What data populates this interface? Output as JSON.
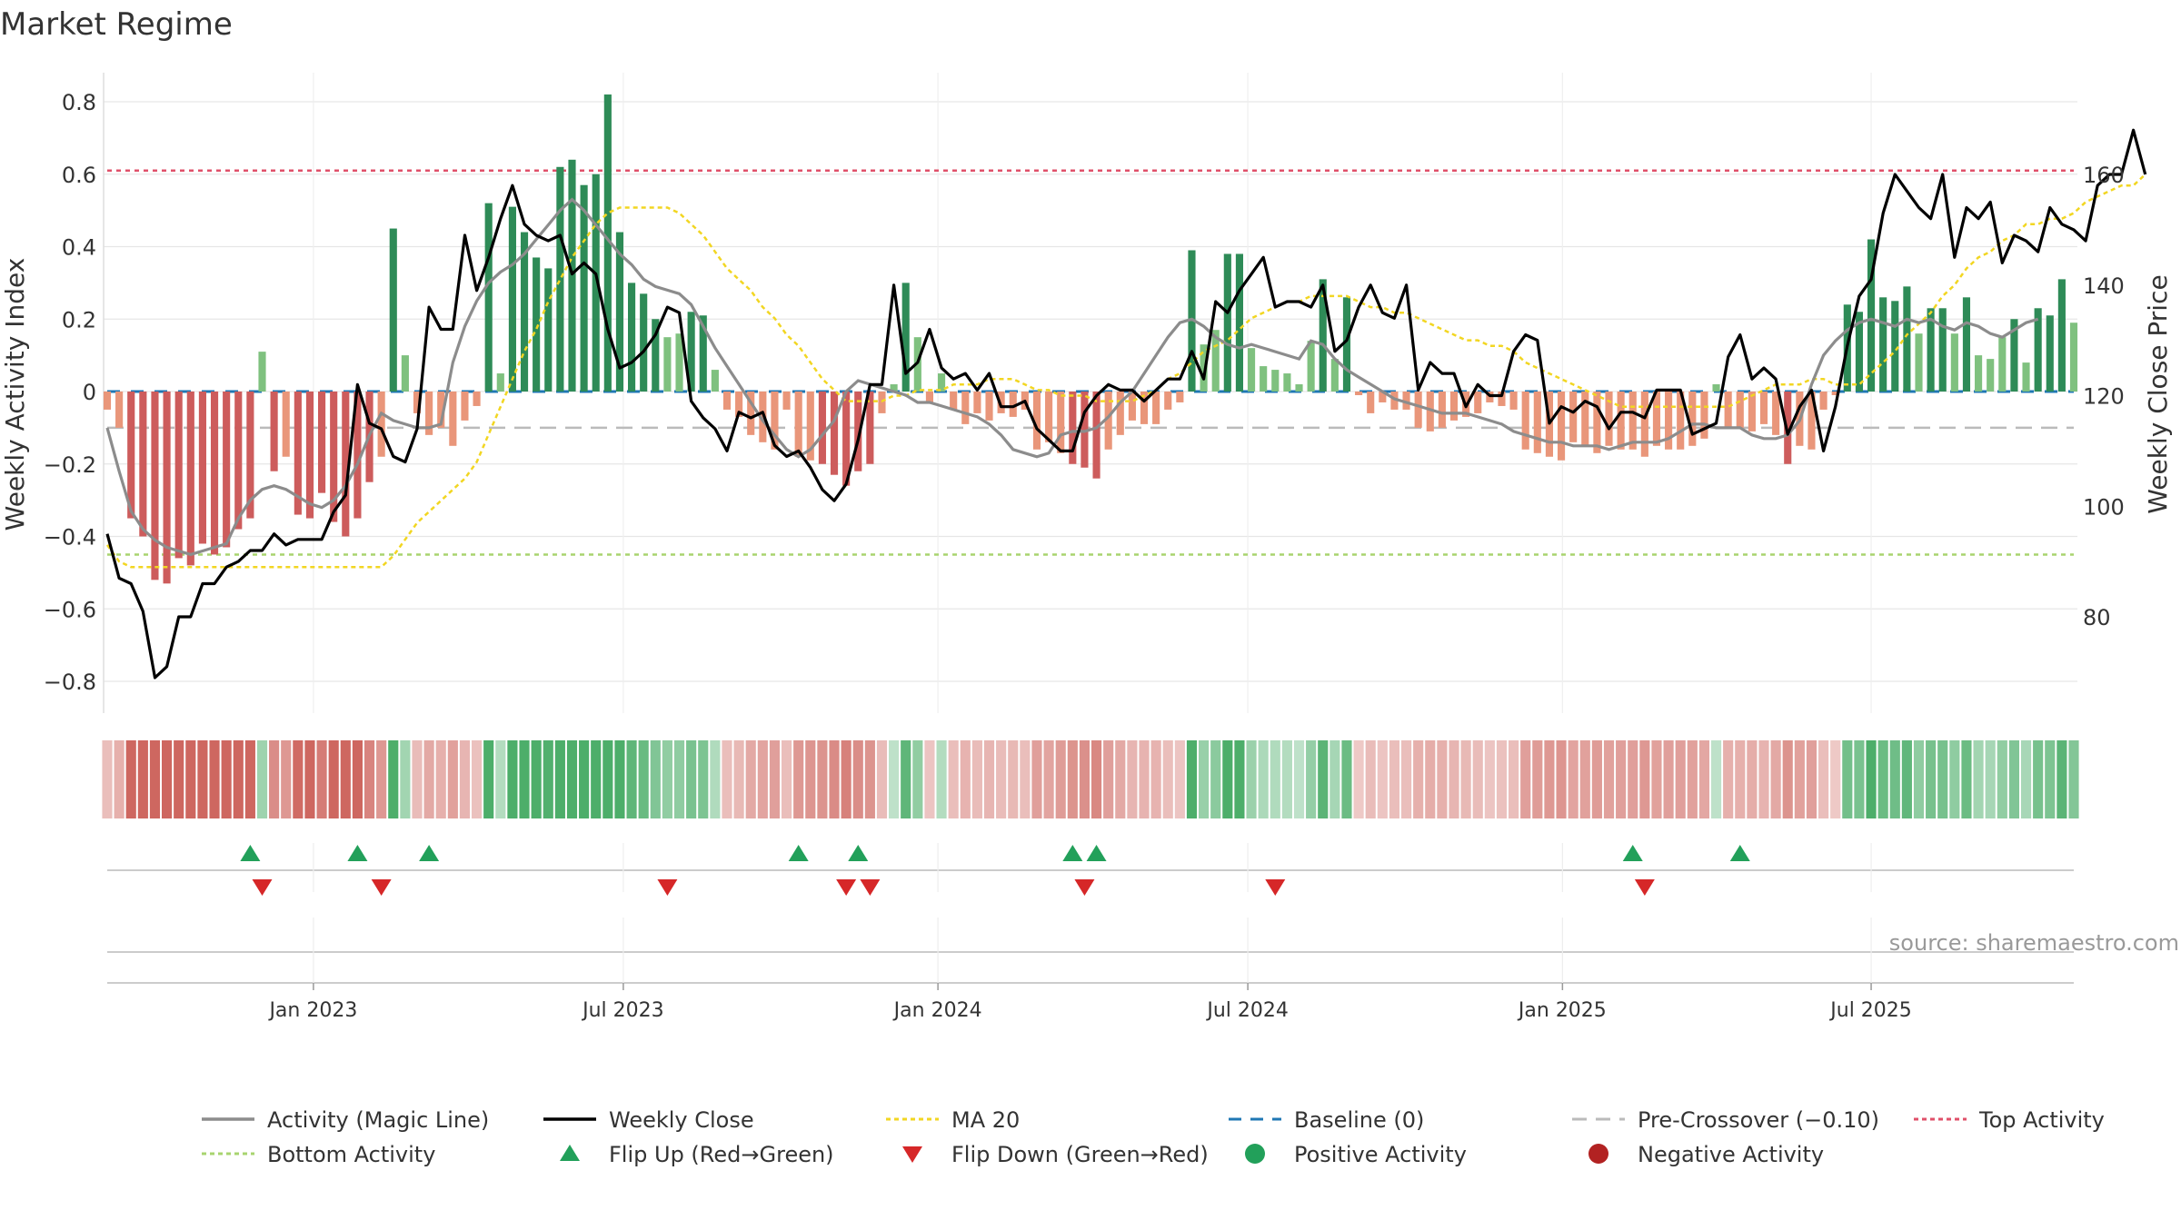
{
  "title": "Market Regime",
  "source_note": "source: sharemaestro.com",
  "colors": {
    "green_dark": "#2e8b57",
    "green_light": "#7fc17f",
    "red_dark": "#cd5c5c",
    "red_light": "#e9967a",
    "weekly_close": "#000000",
    "magic_line": "#8c8c8c",
    "ma20": "#f2d622",
    "baseline": "#1f77b4",
    "pre_crossover": "#bbbbbb",
    "top_activity": "#e0506a",
    "bottom_activity": "#a8d46f",
    "flip_up": "#22a05a",
    "flip_down": "#d62728",
    "grid": "#e6e6e6",
    "axis_text": "#333333"
  },
  "chart_data": {
    "type": "bar",
    "title": "Market Regime",
    "ylabel": "Weekly Activity Index",
    "y2label": "Weekly Close Price",
    "ylim": [
      -0.88,
      0.82
    ],
    "y2lim": [
      67.5,
      174
    ],
    "yticks": [
      "0.8",
      "0.6",
      "0.4",
      "0.2",
      "0",
      "−0.2",
      "−0.4",
      "−0.6",
      "−0.8"
    ],
    "y2ticks": [
      "160",
      "140",
      "120",
      "100",
      "80"
    ],
    "xticks": [
      {
        "label": "Jan 2023",
        "week": 17.3
      },
      {
        "label": "Jul 2023",
        "week": 43.3
      },
      {
        "label": "Jan 2024",
        "week": 69.7
      },
      {
        "label": "Jul 2024",
        "week": 95.7
      },
      {
        "label": "Jan 2025",
        "week": 122.1
      },
      {
        "label": "Jul 2025",
        "week": 148.0
      }
    ],
    "grid": true,
    "top_activity": 0.61,
    "bottom_activity": -0.45,
    "pre_crossover": -0.1,
    "baseline": 0,
    "activity": [
      -0.05,
      -0.1,
      -0.35,
      -0.4,
      -0.52,
      -0.53,
      -0.46,
      -0.48,
      -0.42,
      -0.45,
      -0.43,
      -0.38,
      -0.35,
      0.11,
      -0.22,
      -0.18,
      -0.34,
      -0.35,
      -0.28,
      -0.36,
      -0.4,
      -0.35,
      -0.25,
      -0.18,
      0.45,
      0.1,
      -0.06,
      -0.12,
      -0.1,
      -0.15,
      -0.08,
      -0.04,
      0.52,
      0.05,
      0.51,
      0.44,
      0.37,
      0.34,
      0.62,
      0.64,
      0.57,
      0.6,
      0.82,
      0.44,
      0.3,
      0.27,
      0.2,
      0.15,
      0.16,
      0.22,
      0.21,
      0.06,
      -0.05,
      -0.07,
      -0.12,
      -0.14,
      -0.16,
      -0.05,
      -0.18,
      -0.19,
      -0.2,
      -0.23,
      -0.26,
      -0.22,
      -0.2,
      -0.06,
      0.02,
      0.3,
      0.15,
      -0.03,
      0.05,
      -0.05,
      -0.09,
      -0.06,
      -0.08,
      -0.06,
      -0.07,
      -0.05,
      -0.16,
      -0.14,
      -0.17,
      -0.2,
      -0.21,
      -0.24,
      -0.16,
      -0.12,
      -0.08,
      -0.09,
      -0.09,
      -0.05,
      -0.03,
      0.39,
      0.13,
      0.17,
      0.38,
      0.38,
      0.12,
      0.07,
      0.06,
      0.05,
      0.02,
      0.14,
      0.31,
      0.09,
      0.26,
      -0.01,
      -0.06,
      -0.03,
      -0.05,
      -0.05,
      -0.1,
      -0.11,
      -0.1,
      -0.08,
      -0.07,
      -0.06,
      -0.03,
      -0.04,
      -0.05,
      -0.16,
      -0.17,
      -0.18,
      -0.19,
      -0.14,
      -0.15,
      -0.17,
      -0.15,
      -0.16,
      -0.16,
      -0.18,
      -0.15,
      -0.16,
      -0.16,
      -0.15,
      -0.13,
      0.02,
      -0.1,
      -0.1,
      -0.11,
      -0.09,
      -0.12,
      -0.2,
      -0.15,
      -0.16,
      -0.05,
      -0.01,
      0.24,
      0.22,
      0.42,
      0.26,
      0.25,
      0.29,
      0.16,
      0.23,
      0.23,
      0.16,
      0.26,
      0.1,
      0.09,
      0.15,
      0.2,
      0.08,
      0.23,
      0.21,
      0.31,
      0.19
    ],
    "magic_line": [
      -0.1,
      -0.22,
      -0.33,
      -0.38,
      -0.41,
      -0.43,
      -0.44,
      -0.45,
      -0.44,
      -0.43,
      -0.42,
      -0.35,
      -0.3,
      -0.27,
      -0.26,
      -0.27,
      -0.29,
      -0.31,
      -0.32,
      -0.3,
      -0.26,
      -0.2,
      -0.12,
      -0.06,
      -0.08,
      -0.09,
      -0.1,
      -0.1,
      -0.09,
      0.08,
      0.18,
      0.25,
      0.3,
      0.33,
      0.35,
      0.38,
      0.42,
      0.46,
      0.5,
      0.53,
      0.5,
      0.46,
      0.42,
      0.38,
      0.35,
      0.31,
      0.29,
      0.28,
      0.27,
      0.24,
      0.18,
      0.12,
      0.07,
      0.02,
      -0.03,
      -0.08,
      -0.12,
      -0.16,
      -0.18,
      -0.16,
      -0.12,
      -0.08,
      0.0,
      0.03,
      0.02,
      0.01,
      0.0,
      -0.01,
      -0.03,
      -0.03,
      -0.04,
      -0.05,
      -0.06,
      -0.07,
      -0.09,
      -0.12,
      -0.16,
      -0.17,
      -0.18,
      -0.17,
      -0.12,
      -0.11,
      -0.11,
      -0.1,
      -0.07,
      -0.03,
      0.0,
      0.05,
      0.1,
      0.15,
      0.19,
      0.2,
      0.18,
      0.15,
      0.13,
      0.12,
      0.13,
      0.12,
      0.11,
      0.1,
      0.09,
      0.14,
      0.13,
      0.09,
      0.06,
      0.04,
      0.02,
      0.0,
      -0.02,
      -0.03,
      -0.04,
      -0.05,
      -0.06,
      -0.06,
      -0.06,
      -0.07,
      -0.08,
      -0.09,
      -0.11,
      -0.12,
      -0.13,
      -0.14,
      -0.14,
      -0.15,
      -0.15,
      -0.15,
      -0.16,
      -0.15,
      -0.14,
      -0.14,
      -0.14,
      -0.13,
      -0.11,
      -0.09,
      -0.09,
      -0.1,
      -0.1,
      -0.1,
      -0.12,
      -0.13,
      -0.13,
      -0.12,
      -0.08,
      0.02,
      0.1,
      0.14,
      0.17,
      0.19,
      0.2,
      0.19,
      0.18,
      0.2,
      0.19,
      0.2,
      0.18,
      0.17,
      0.19,
      0.18,
      0.16,
      0.15,
      0.17,
      0.19,
      0.2
    ],
    "weekly_close": [
      95,
      87,
      86,
      81,
      69,
      71,
      80,
      80,
      86,
      86,
      89,
      90,
      92,
      92,
      95,
      93,
      94,
      94,
      94,
      99,
      102,
      122,
      115,
      114,
      109,
      108,
      114,
      136,
      132,
      132,
      149,
      139,
      145,
      152,
      158,
      151,
      149,
      148,
      149,
      142,
      144,
      142,
      132,
      125,
      126,
      128,
      131,
      136,
      135,
      119,
      116,
      114,
      110,
      117,
      116,
      117,
      111,
      109,
      110,
      107,
      103,
      101,
      104,
      112,
      122,
      122,
      140,
      124,
      126,
      132,
      125,
      123,
      124,
      121,
      124,
      118,
      118,
      119,
      114,
      112,
      110,
      110,
      117,
      120,
      122,
      121,
      121,
      119,
      121,
      123,
      123,
      128,
      123,
      137,
      135,
      139,
      142,
      145,
      136,
      137,
      137,
      136,
      140,
      128,
      130,
      136,
      140,
      135,
      134,
      140,
      121,
      126,
      124,
      124,
      118,
      122,
      120,
      120,
      128,
      131,
      130,
      115,
      118,
      117,
      119,
      118,
      114,
      117,
      117,
      116,
      121,
      121,
      121,
      113,
      114,
      115,
      127,
      131,
      123,
      125,
      123,
      113,
      118,
      121,
      110,
      118,
      129,
      138,
      141,
      153,
      160,
      157,
      154,
      152,
      160,
      145,
      154,
      152,
      155,
      144,
      149,
      148,
      146,
      154,
      151,
      150,
      148,
      158,
      160,
      160,
      168,
      160
    ],
    "ma20": [
      93,
      90,
      89,
      89,
      89,
      89,
      89,
      89,
      89,
      89,
      89,
      89,
      89,
      89,
      89,
      89,
      89,
      89,
      89,
      89,
      89,
      89,
      89,
      89,
      91,
      94,
      97,
      99,
      101,
      103,
      105,
      108,
      113,
      118,
      123,
      128,
      132,
      137,
      141,
      145,
      148,
      151,
      153,
      154,
      154,
      154,
      154,
      154,
      153,
      151,
      149,
      146,
      143,
      141,
      139,
      136,
      134,
      131,
      129,
      126,
      123,
      121,
      119,
      119,
      119,
      119,
      120,
      120,
      121,
      121,
      121,
      122,
      122,
      122,
      123,
      123,
      123,
      122,
      121,
      121,
      120,
      120,
      120,
      119,
      119,
      119,
      119,
      120,
      121,
      123,
      124,
      126,
      128,
      129,
      130,
      132,
      134,
      135,
      136,
      137,
      137,
      138,
      138,
      138,
      138,
      137,
      136,
      136,
      135,
      135,
      134,
      133,
      132,
      131,
      130,
      130,
      129,
      129,
      128,
      126,
      125,
      124,
      123,
      122,
      121,
      120,
      119,
      118,
      118,
      118,
      118,
      118,
      118,
      118,
      118,
      118,
      118,
      119,
      120,
      121,
      122,
      122,
      122,
      123,
      123,
      122,
      122,
      122,
      124,
      126,
      128,
      131,
      133,
      135,
      138,
      140,
      143,
      145,
      146,
      148,
      149,
      151,
      151,
      152,
      152,
      153,
      155,
      156,
      157,
      158,
      158,
      160
    ]
  },
  "flip_up_weeks": [
    12,
    21,
    27,
    58,
    63,
    81,
    83,
    128,
    137
  ],
  "flip_down_weeks": [
    13,
    23,
    47,
    62,
    64,
    82,
    98,
    129
  ],
  "legend": [
    {
      "label": "Activity (Magic Line)",
      "icon": "solid-gray-line"
    },
    {
      "label": "Weekly Close",
      "icon": "solid-black-line"
    },
    {
      "label": "MA 20",
      "icon": "dotted-yellow-line"
    },
    {
      "label": "Baseline (0)",
      "icon": "dashed-blue-line"
    },
    {
      "label": "Pre-Crossover (−0.10)",
      "icon": "dashed-gray-line"
    },
    {
      "label": "Top Activity",
      "icon": "dotted-red-line"
    },
    {
      "label": "Bottom Activity",
      "icon": "dotted-green-line"
    },
    {
      "label": "Flip Up (Red→Green)",
      "icon": "triangle-up-icon"
    },
    {
      "label": "Flip Down (Green→Red)",
      "icon": "triangle-down-icon"
    },
    {
      "label": "Positive Activity",
      "icon": "green-dot-icon"
    },
    {
      "label": "Negative Activity",
      "icon": "red-dot-icon"
    }
  ]
}
